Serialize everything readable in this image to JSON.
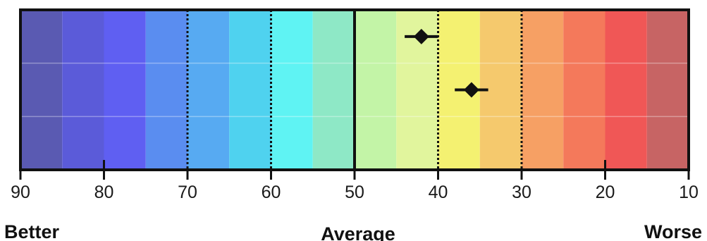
{
  "chart_data": {
    "type": "scatter",
    "x_axis": {
      "min": 10,
      "max": 90,
      "reversed": true,
      "ticks": [
        90,
        80,
        70,
        60,
        50,
        40,
        30,
        20,
        10
      ],
      "tick_labels": [
        "90",
        "80",
        "70",
        "60",
        "50",
        "40",
        "30",
        "20",
        "10"
      ]
    },
    "scale_captions": {
      "left": "Better",
      "center": "Average",
      "right": "Worse"
    },
    "bands": [
      {
        "from": 90,
        "to": 85,
        "color": "#5a5ab2"
      },
      {
        "from": 85,
        "to": 80,
        "color": "#5b5bd9"
      },
      {
        "from": 80,
        "to": 75,
        "color": "#5f5ff2"
      },
      {
        "from": 75,
        "to": 70,
        "color": "#5a8df0"
      },
      {
        "from": 70,
        "to": 65,
        "color": "#57aaf2"
      },
      {
        "from": 65,
        "to": 60,
        "color": "#4fd2ef"
      },
      {
        "from": 60,
        "to": 55,
        "color": "#5ff3f3"
      },
      {
        "from": 55,
        "to": 50,
        "color": "#8ee8c6"
      },
      {
        "from": 50,
        "to": 45,
        "color": "#c3f4a7"
      },
      {
        "from": 45,
        "to": 40,
        "color": "#e1f59d"
      },
      {
        "from": 40,
        "to": 35,
        "color": "#f4f171"
      },
      {
        "from": 35,
        "to": 30,
        "color": "#f5c96d"
      },
      {
        "from": 30,
        "to": 25,
        "color": "#f6a064"
      },
      {
        "from": 25,
        "to": 20,
        "color": "#f4795b"
      },
      {
        "from": 20,
        "to": 15,
        "color": "#f05756"
      },
      {
        "from": 15,
        "to": 10,
        "color": "#c76464"
      }
    ],
    "reference_lines": [
      {
        "x": 70,
        "style": "dashed"
      },
      {
        "x": 60,
        "style": "dashed"
      },
      {
        "x": 50,
        "style": "solid"
      },
      {
        "x": 40,
        "style": "dashed"
      },
      {
        "x": 30,
        "style": "dashed"
      }
    ],
    "row_count": 3,
    "points": [
      {
        "row": 1,
        "x": 42,
        "ci": [
          40,
          44
        ]
      },
      {
        "row": 2,
        "x": 36,
        "ci": [
          34,
          38
        ]
      }
    ],
    "minor_ticks": [
      80,
      20
    ]
  }
}
